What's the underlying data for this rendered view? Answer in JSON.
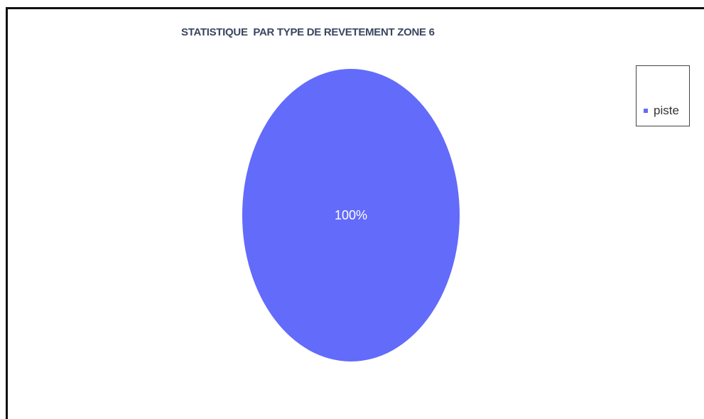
{
  "chart_data": {
    "type": "pie",
    "title": "STATISTIQUE  PAR TYPE DE REVETEMENT ZONE 6",
    "slices": [
      {
        "label": "piste",
        "value": 100,
        "display": "100%",
        "color": "#636bfa"
      }
    ],
    "legend": {
      "placement": "right",
      "entries": [
        "piste"
      ]
    }
  }
}
